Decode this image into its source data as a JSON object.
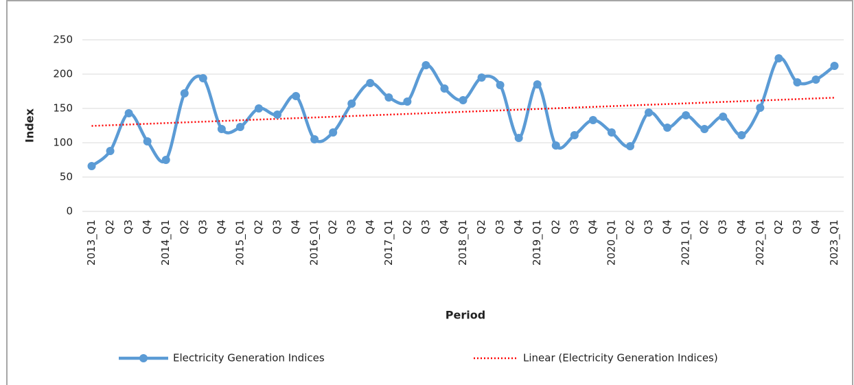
{
  "chart_data": {
    "type": "line",
    "x_label": "Period",
    "y_label": "Index",
    "categories": [
      "2013_Q1",
      "Q2",
      "Q3",
      "Q4",
      "2014_Q1",
      "Q2",
      "Q3",
      "Q4",
      "2015_Q1",
      "Q2",
      "Q3",
      "Q4",
      "2016_Q1",
      "Q2",
      "Q3",
      "Q4",
      "2017_Q1",
      "Q2",
      "Q3",
      "Q4",
      "2018_Q1",
      "Q2",
      "Q3",
      "Q4",
      "2019_Q1",
      "Q2",
      "Q3",
      "Q4",
      "2020_Q1",
      "Q2",
      "Q3",
      "Q4",
      "2021_Q1",
      "Q2",
      "Q3",
      "Q4",
      "2022_Q1",
      "Q2",
      "Q3",
      "Q4",
      "2023_Q1"
    ],
    "series": [
      {
        "name": "Electricity Generation Indices",
        "color": "#5b9bd5",
        "values": [
          66,
          88,
          143,
          102,
          75,
          172,
          194,
          120,
          123,
          150,
          141,
          168,
          105,
          115,
          157,
          187,
          166,
          160,
          213,
          179,
          162,
          195,
          184,
          107,
          185,
          96,
          111,
          133,
          115,
          95,
          144,
          122,
          140,
          120,
          138,
          111,
          151,
          223,
          188,
          192,
          212
        ]
      }
    ],
    "trendline": {
      "name": "Linear (Electricity Generation Indices)",
      "color": "#ff0000"
    },
    "ylim": [
      0,
      250
    ],
    "yticks": [
      0,
      50,
      100,
      150,
      200,
      250
    ],
    "grid": true,
    "legend": "bottom"
  }
}
